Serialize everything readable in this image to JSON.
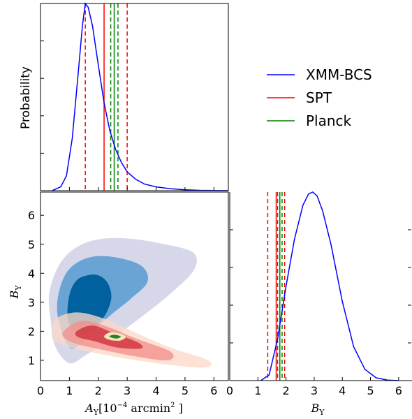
{
  "chart_data": [
    {
      "panel": "top-left",
      "type": "line",
      "ylabel": "Probability",
      "xlim": [
        0,
        6.5
      ],
      "series": [
        {
          "name": "XMM-BCS",
          "color": "#0000ff",
          "style": "solid",
          "x": [
            0.4,
            0.7,
            0.9,
            1.1,
            1.3,
            1.45,
            1.55,
            1.65,
            1.8,
            2.0,
            2.2,
            2.4,
            2.6,
            2.8,
            3.0,
            3.3,
            3.6,
            4.0,
            4.5,
            5.0,
            5.5,
            6.0,
            6.5
          ],
          "y": [
            0.0,
            0.02,
            0.08,
            0.28,
            0.62,
            0.88,
            1.0,
            0.98,
            0.88,
            0.67,
            0.47,
            0.32,
            0.22,
            0.15,
            0.1,
            0.06,
            0.035,
            0.02,
            0.01,
            0.005,
            0.002,
            0.001,
            0.0
          ]
        }
      ],
      "vlines": [
        {
          "series": "SPT",
          "x": 2.2,
          "style": "solid",
          "color": "#ff0000"
        },
        {
          "series": "SPT",
          "x": 1.55,
          "style": "dashed",
          "color": "#ff0000"
        },
        {
          "series": "SPT",
          "x": 3.0,
          "style": "dashed",
          "color": "#ff0000"
        },
        {
          "series": "Planck",
          "x": 2.55,
          "style": "solid",
          "color": "#008000"
        },
        {
          "series": "Planck",
          "x": 2.43,
          "style": "dashed",
          "color": "#008000"
        },
        {
          "series": "Planck",
          "x": 2.68,
          "style": "dashed",
          "color": "#008000"
        }
      ]
    },
    {
      "panel": "bottom-left",
      "type": "contour",
      "xlabel": "A_Y [10^-4 arcmin^2]",
      "ylabel": "B_Y",
      "xlim": [
        0,
        6.5
      ],
      "ylim": [
        0.3,
        6.8
      ],
      "xticks": [
        0,
        1,
        2,
        3,
        4,
        5,
        6
      ],
      "yticks": [
        1,
        2,
        3,
        4,
        5,
        6
      ],
      "regions": [
        {
          "series": "XMM-BCS",
          "level": 3,
          "color": "#d7d7ea",
          "points": [
            [
              0.35,
              2.4
            ],
            [
              0.3,
              3.3
            ],
            [
              0.6,
              4.2
            ],
            [
              1.1,
              4.8
            ],
            [
              1.9,
              5.15
            ],
            [
              3.0,
              5.2
            ],
            [
              4.3,
              5.0
            ],
            [
              5.3,
              4.7
            ],
            [
              5.3,
              4.1
            ],
            [
              4.5,
              3.3
            ],
            [
              3.5,
              2.5
            ],
            [
              2.4,
              1.7
            ],
            [
              1.6,
              1.2
            ],
            [
              1.0,
              0.9
            ],
            [
              0.5,
              1.5
            ]
          ]
        },
        {
          "series": "XMM-BCS",
          "level": 2,
          "color": "#6aa4d4",
          "points": [
            [
              0.6,
              2.5
            ],
            [
              0.65,
              3.4
            ],
            [
              1.0,
              4.15
            ],
            [
              1.7,
              4.55
            ],
            [
              2.6,
              4.55
            ],
            [
              3.5,
              4.25
            ],
            [
              3.7,
              3.7
            ],
            [
              3.1,
              3.1
            ],
            [
              2.3,
              2.45
            ],
            [
              1.5,
              1.65
            ],
            [
              1.0,
              1.45
            ]
          ]
        },
        {
          "series": "XMM-BCS",
          "level": 1,
          "color": "#00619e",
          "points": [
            [
              0.95,
              2.4
            ],
            [
              1.0,
              3.25
            ],
            [
              1.3,
              3.8
            ],
            [
              1.9,
              3.95
            ],
            [
              2.3,
              3.7
            ],
            [
              2.45,
              3.15
            ],
            [
              2.2,
              2.5
            ],
            [
              1.7,
              2.0
            ],
            [
              1.25,
              1.95
            ]
          ]
        },
        {
          "series": "SPT",
          "level": 3,
          "color": "#fbd8c8",
          "points": [
            [
              0.4,
              2.0
            ],
            [
              0.55,
              2.45
            ],
            [
              1.3,
              2.65
            ],
            [
              2.3,
              2.4
            ],
            [
              3.4,
              1.9
            ],
            [
              4.6,
              1.4
            ],
            [
              5.8,
              1.0
            ],
            [
              5.7,
              0.75
            ],
            [
              4.4,
              0.85
            ],
            [
              3.0,
              1.05
            ],
            [
              1.9,
              1.25
            ],
            [
              1.0,
              1.45
            ],
            [
              0.45,
              1.7
            ]
          ]
        },
        {
          "series": "SPT",
          "level": 2,
          "color": "#f4908c",
          "points": [
            [
              0.8,
              2.0
            ],
            [
              1.4,
              2.35
            ],
            [
              2.2,
              2.2
            ],
            [
              3.3,
              1.75
            ],
            [
              4.5,
              1.3
            ],
            [
              4.4,
              1.0
            ],
            [
              3.2,
              1.15
            ],
            [
              2.2,
              1.35
            ],
            [
              1.3,
              1.55
            ],
            [
              0.85,
              1.75
            ]
          ]
        },
        {
          "series": "SPT",
          "level": 1,
          "color": "#ce2e3a",
          "points": [
            [
              1.25,
              2.0
            ],
            [
              1.8,
              2.2
            ],
            [
              2.5,
              1.95
            ],
            [
              3.4,
              1.6
            ],
            [
              3.45,
              1.4
            ],
            [
              2.6,
              1.45
            ],
            [
              1.9,
              1.65
            ],
            [
              1.3,
              1.8
            ]
          ]
        },
        {
          "series": "Planck",
          "level": 2,
          "color": "#f2e7bc",
          "points": [
            [
              2.2,
              1.82
            ],
            [
              2.4,
              1.96
            ],
            [
              2.75,
              1.92
            ],
            [
              2.95,
              1.8
            ],
            [
              2.75,
              1.68
            ],
            [
              2.4,
              1.7
            ]
          ]
        },
        {
          "series": "Planck",
          "level": 1,
          "color": "#2d7d2d",
          "points": [
            [
              2.38,
              1.82
            ],
            [
              2.55,
              1.88
            ],
            [
              2.78,
              1.82
            ],
            [
              2.62,
              1.75
            ]
          ]
        }
      ]
    },
    {
      "panel": "bottom-right",
      "type": "line",
      "xlabel": "B_Y",
      "xlim": [
        0,
        6.5
      ],
      "xticks": [
        0,
        1,
        2,
        3,
        4,
        5,
        6
      ],
      "series": [
        {
          "name": "XMM-BCS",
          "color": "#0000ff",
          "style": "solid",
          "x": [
            1.1,
            1.4,
            1.7,
            2.0,
            2.3,
            2.6,
            2.8,
            2.95,
            3.1,
            3.3,
            3.6,
            4.0,
            4.4,
            4.8,
            5.2,
            5.6,
            6.0
          ],
          "y": [
            0.0,
            0.03,
            0.22,
            0.5,
            0.75,
            0.93,
            0.99,
            1.0,
            0.98,
            0.9,
            0.72,
            0.42,
            0.18,
            0.06,
            0.015,
            0.003,
            0.0
          ]
        }
      ],
      "vlines": [
        {
          "series": "SPT",
          "x": 1.65,
          "style": "solid",
          "color": "#ff0000"
        },
        {
          "series": "SPT",
          "x": 1.35,
          "style": "dashed",
          "color": "#ff0000"
        },
        {
          "series": "SPT",
          "x": 1.95,
          "style": "dashed",
          "color": "#ff0000"
        },
        {
          "series": "Planck",
          "x": 1.78,
          "style": "solid",
          "color": "#008000"
        },
        {
          "series": "Planck",
          "x": 1.7,
          "style": "dashed",
          "color": "#008000"
        },
        {
          "series": "Planck",
          "x": 1.86,
          "style": "dashed",
          "color": "#008000"
        }
      ]
    }
  ],
  "legend": {
    "placement": "top-right",
    "items": [
      {
        "label": "XMM-BCS",
        "color": "#0000ff"
      },
      {
        "label": "SPT",
        "color": "#ff0000"
      },
      {
        "label": "Planck",
        "color": "#008000"
      }
    ]
  },
  "labels": {
    "probability": "Probability",
    "by_letter": "B",
    "by_sub": "Y",
    "ay_letter": "A",
    "ay_sub": "Y",
    "ay_units": "[10",
    "ay_exp": "−4",
    "ay_units2": " arcmin",
    "ay_exp2": "2",
    "ay_close": " ]"
  }
}
